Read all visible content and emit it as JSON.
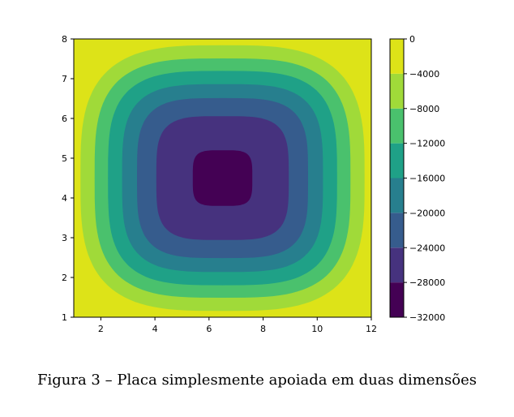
{
  "caption": "Figura 3 – Placa simplesmente apoiada em duas dimensões",
  "chart_data": {
    "type": "heatmap",
    "subtype": "filled-contour",
    "title": "",
    "xlabel": "",
    "ylabel": "",
    "xlim": [
      1,
      12
    ],
    "ylim": [
      1,
      8
    ],
    "x_ticks": [
      2,
      4,
      6,
      8,
      10,
      12
    ],
    "y_ticks": [
      1,
      2,
      3,
      4,
      5,
      6,
      7,
      8
    ],
    "center": [
      6.5,
      4.5
    ],
    "min_value": -32000,
    "max_value": 0,
    "levels": [
      -32000,
      -28000,
      -24000,
      -20000,
      -16000,
      -12000,
      -8000,
      -4000,
      0
    ],
    "colorbar_ticks": [
      0,
      -4000,
      -8000,
      -12000,
      -16000,
      -20000,
      -24000,
      -28000,
      -32000
    ],
    "colorbar_tick_labels": [
      "0",
      "−4000",
      "−8000",
      "−12000",
      "−16000",
      "−20000",
      "−24000",
      "−28000",
      "−32000"
    ],
    "band_colors": [
      "#440154",
      "#46327e",
      "#365c8d",
      "#277f8e",
      "#1fa187",
      "#4ac16d",
      "#a0da39",
      "#dde318"
    ],
    "colormap": "viridis",
    "legend": "colorbar-right",
    "grid": false
  }
}
